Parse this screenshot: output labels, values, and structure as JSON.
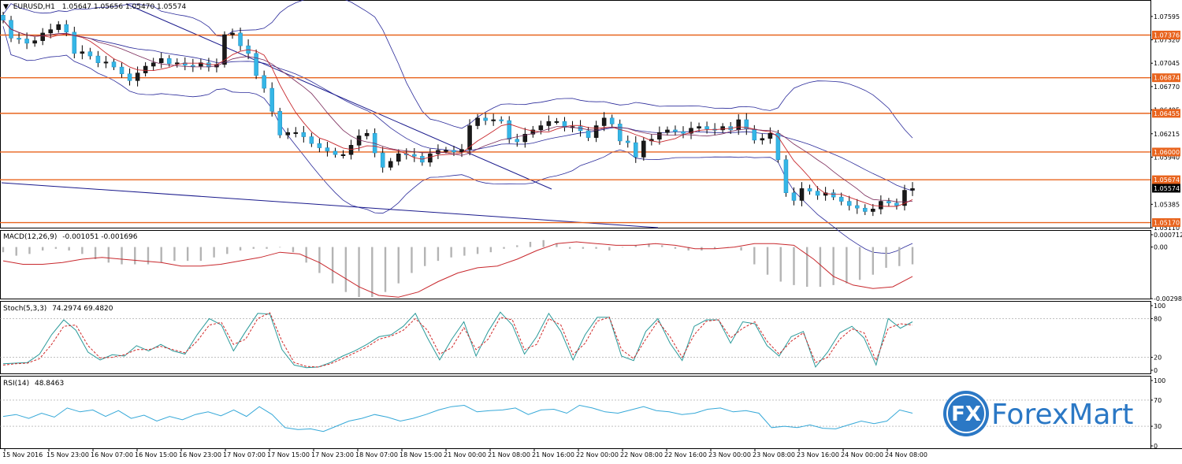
{
  "chart_data": [
    {
      "type": "candlestick",
      "panel": "price",
      "header": {
        "marker": "▼",
        "symbol": "EURUSD,H1",
        "ohlc": "1.05647 1.05656 1.05470 1.05574"
      },
      "ylim": [
        1.0511,
        1.0777
      ],
      "y_ticks": [
        "1.07595",
        "1.07320",
        "1.07045",
        "1.06770",
        "1.06495",
        "1.06215",
        "1.05940",
        "1.05385",
        "1.05110"
      ],
      "current_price": "1.05574",
      "levels": [
        {
          "label": "1.07376",
          "value": 1.07376
        },
        {
          "label": "1.06874",
          "value": 1.06874
        },
        {
          "label": "1.06455",
          "value": 1.06455
        },
        {
          "label": "1.06000",
          "value": 1.06
        },
        {
          "label": "1.05674",
          "value": 1.05674
        },
        {
          "label": "1.05170",
          "value": 1.0517
        }
      ],
      "close_path": [
        1.0755,
        1.0734,
        1.0733,
        1.0728,
        1.0731,
        1.074,
        1.0744,
        1.075,
        1.0741,
        1.0716,
        1.0718,
        1.0713,
        1.0705,
        1.0706,
        1.07,
        1.0692,
        1.0684,
        1.0693,
        1.0701,
        1.0705,
        1.071,
        1.0704,
        1.0705,
        1.0702,
        1.0701,
        1.0705,
        1.07,
        1.0703,
        1.0738,
        1.074,
        1.0725,
        1.0716,
        1.069,
        1.0675,
        1.0648,
        1.062,
        1.0623,
        1.0623,
        1.0618,
        1.061,
        1.0605,
        1.0601,
        1.0597,
        1.0597,
        1.0608,
        1.0619,
        1.0622,
        1.0599,
        1.0582,
        1.0589,
        1.0598,
        1.0597,
        1.0595,
        1.0588,
        1.0598,
        1.0602,
        1.0602,
        1.06,
        1.0603,
        1.0631,
        1.064,
        1.0637,
        1.0638,
        1.0637,
        1.0615,
        1.0612,
        1.0621,
        1.0626,
        1.0631,
        1.0636,
        1.0636,
        1.0629,
        1.063,
        1.0625,
        1.0617,
        1.0631,
        1.064,
        1.0633,
        1.0613,
        1.0611,
        1.0594,
        1.0613,
        1.0615,
        1.0623,
        1.0626,
        1.0624,
        1.0622,
        1.0628,
        1.063,
        1.0627,
        1.0626,
        1.063,
        1.0626,
        1.0638,
        1.0627,
        1.0614,
        1.0616,
        1.0622,
        1.0591,
        1.0552,
        1.0543,
        1.0557,
        1.0554,
        1.0549,
        1.0552,
        1.0547,
        1.0542,
        1.0537,
        1.0534,
        1.053,
        1.0533,
        1.0542,
        1.054,
        1.0537,
        1.0555,
        1.0557
      ],
      "x_tick_labels": [
        "15 Nov 2016",
        "15 Nov 23:00",
        "16 Nov 07:00",
        "16 Nov 15:00",
        "16 Nov 23:00",
        "17 Nov 07:00",
        "17 Nov 15:00",
        "17 Nov 23:00",
        "18 Nov 07:00",
        "18 Nov 15:00",
        "21 Nov 00:00",
        "21 Nov 08:00",
        "21 Nov 16:00",
        "22 Nov 00:00",
        "22 Nov 08:00",
        "22 Nov 16:00",
        "23 Nov 00:00",
        "23 Nov 08:00",
        "23 Nov 16:00",
        "24 Nov 00:00",
        "24 Nov 08:00"
      ],
      "indicators": [
        "Bollinger Bands",
        "Moving Average",
        "Trend lines"
      ]
    },
    {
      "type": "bar+line",
      "panel": "macd",
      "header": {
        "name": "MACD(12,26,9)",
        "values": "-0.001051 -0.001696"
      },
      "ylim": [
        -0.00298,
        0.00071
      ],
      "y_ticks": [
        "0.000712",
        "0.00",
        "-0.002987"
      ],
      "histogram": [
        -0.0003,
        -0.0005,
        -0.0004,
        -0.0002,
        -0.0001,
        -0.0002,
        -0.0004,
        -0.0007,
        -0.0009,
        -0.001,
        -0.001,
        -0.001,
        -0.0009,
        -0.0008,
        -0.0008,
        -0.0008,
        -0.0006,
        -0.0004,
        -0.0002,
        -0.0001,
        -0.0001,
        0.0,
        -0.0003,
        -0.0009,
        -0.0015,
        -0.0021,
        -0.0026,
        -0.0029,
        -0.0029,
        -0.0026,
        -0.0021,
        -0.0015,
        -0.0011,
        -0.0008,
        -0.0006,
        -0.0005,
        -0.0004,
        -0.0003,
        -0.0001,
        0.0001,
        0.0003,
        0.0004,
        0.0002,
        -0.0001,
        -0.0001,
        -0.0001,
        -0.0002,
        0.0,
        0.0001,
        0.0002,
        0.0001,
        -0.0001,
        -0.0002,
        -0.0002,
        -0.0001,
        0.0,
        -0.0002,
        -0.001,
        -0.0016,
        -0.002,
        -0.0022,
        -0.0023,
        -0.0023,
        -0.0022,
        -0.0021,
        -0.0019,
        -0.0016,
        -0.0012,
        -0.0011,
        -0.001
      ],
      "signal": [
        -0.0008,
        -0.001,
        -0.001,
        -0.0009,
        -0.0007,
        -0.0006,
        -0.0007,
        -0.0008,
        -0.0009,
        -0.0011,
        -0.0011,
        -0.001,
        -0.0008,
        -0.0006,
        -0.0003,
        -0.0004,
        -0.0009,
        -0.0016,
        -0.0023,
        -0.0028,
        -0.0029,
        -0.0026,
        -0.002,
        -0.0015,
        -0.0012,
        -0.0011,
        -0.0007,
        -0.0002,
        0.0002,
        0.0003,
        0.0002,
        0.0001,
        0.0001,
        0.0002,
        0.0001,
        -0.0001,
        -0.0001,
        0.0,
        0.0002,
        0.0002,
        0.0001,
        -0.0007,
        -0.0017,
        -0.0022,
        -0.0024,
        -0.0023,
        -0.0017
      ]
    },
    {
      "type": "line",
      "panel": "stochastic",
      "header": {
        "name": "Stoch(5,3,3)",
        "values": "74.2974 69.4820"
      },
      "ylim": [
        0,
        100
      ],
      "y_ticks": [
        "100",
        "80",
        "20",
        "0"
      ],
      "main": [
        10,
        11,
        12,
        25,
        55,
        78,
        62,
        28,
        16,
        24,
        22,
        38,
        30,
        40,
        30,
        25,
        55,
        80,
        70,
        30,
        60,
        88,
        87,
        32,
        8,
        4,
        5,
        12,
        22,
        30,
        40,
        52,
        55,
        68,
        88,
        50,
        16,
        48,
        75,
        22,
        60,
        90,
        70,
        25,
        52,
        88,
        60,
        16,
        55,
        82,
        82,
        22,
        15,
        60,
        80,
        42,
        15,
        68,
        78,
        78,
        42,
        75,
        72,
        38,
        22,
        52,
        60,
        5,
        28,
        58,
        68,
        50,
        8,
        80,
        65,
        75
      ],
      "signal": [
        8,
        10,
        11,
        18,
        40,
        68,
        70,
        38,
        19,
        20,
        24,
        32,
        32,
        37,
        32,
        27,
        45,
        70,
        74,
        40,
        48,
        80,
        89,
        45,
        12,
        6,
        5,
        10,
        18,
        27,
        36,
        48,
        53,
        62,
        80,
        62,
        25,
        35,
        66,
        32,
        48,
        82,
        78,
        32,
        40,
        80,
        70,
        24,
        42,
        76,
        82,
        32,
        18,
        48,
        76,
        52,
        20,
        55,
        76,
        78,
        50,
        65,
        75,
        45,
        25,
        45,
        58,
        12,
        20,
        48,
        64,
        58,
        15,
        65,
        72,
        70
      ]
    },
    {
      "type": "line",
      "panel": "rsi",
      "header": {
        "name": "RSI(14)",
        "values": "48.8463"
      },
      "ylim": [
        0,
        100
      ],
      "y_ticks": [
        "100",
        "70",
        "30",
        "0"
      ],
      "values": [
        45,
        48,
        42,
        50,
        44,
        58,
        52,
        55,
        45,
        54,
        42,
        47,
        38,
        45,
        40,
        48,
        52,
        46,
        55,
        45,
        60,
        48,
        28,
        25,
        26,
        22,
        30,
        38,
        42,
        48,
        44,
        38,
        42,
        48,
        55,
        60,
        62,
        52,
        54,
        55,
        58,
        48,
        55,
        56,
        50,
        62,
        58,
        52,
        50,
        55,
        60,
        54,
        52,
        48,
        50,
        56,
        58,
        52,
        54,
        50,
        28,
        30,
        28,
        32,
        27,
        26,
        32,
        38,
        34,
        38,
        55,
        50
      ]
    }
  ],
  "logo": {
    "text": "ForexMart",
    "mark": "FX"
  }
}
